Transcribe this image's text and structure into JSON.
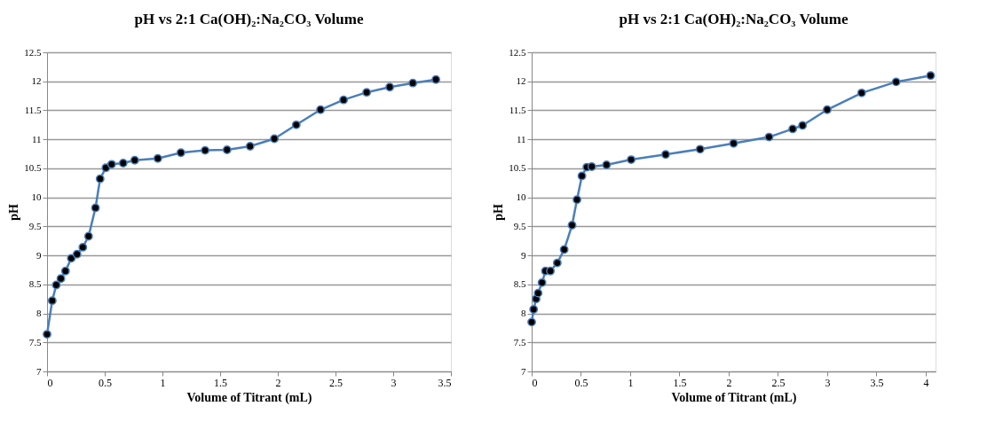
{
  "chart_data": [
    {
      "type": "line",
      "title": "pH vs 2:1 Ca(OH)₂:Na₂CO₃ Volume",
      "xlabel": "Volume of Titrant (mL)",
      "ylabel": "pH",
      "marker": "circle",
      "line_style": "solid",
      "grid": "y",
      "xlim": [
        0,
        3.5
      ],
      "xticks": [
        0,
        0.5,
        1,
        1.5,
        2,
        2.5,
        3,
        3.5
      ],
      "ylim": [
        7,
        12.5
      ],
      "yticks": [
        7,
        7.5,
        8,
        8.5,
        9,
        9.5,
        10,
        10.5,
        11,
        11.5,
        12,
        12.5
      ],
      "x": [
        0,
        0.045,
        0.08,
        0.12,
        0.16,
        0.21,
        0.26,
        0.31,
        0.36,
        0.42,
        0.46,
        0.51,
        0.56,
        0.66,
        0.76,
        0.96,
        1.16,
        1.37,
        1.56,
        1.76,
        1.97,
        2.16,
        2.37,
        2.57,
        2.77,
        2.97,
        3.17,
        3.37
      ],
      "series": [
        {
          "color": "#4a7ebb",
          "values": [
            7.64,
            8.22,
            8.49,
            8.6,
            8.73,
            8.95,
            9.02,
            9.14,
            9.33,
            9.82,
            10.32,
            10.51,
            10.57,
            10.59,
            10.64,
            10.67,
            10.77,
            10.81,
            10.82,
            10.88,
            11.01,
            11.25,
            11.51,
            11.68,
            11.81,
            11.9,
            11.97,
            12.03
          ]
        }
      ]
    },
    {
      "type": "line",
      "title": "pH vs 2:1 Ca(OH)₂:Na₂CO₃ Volume",
      "xlabel": "Volume of Titrant (mL)",
      "ylabel": "pH",
      "marker": "circle",
      "line_style": "solid",
      "grid": "y",
      "xlim": [
        0,
        4.1
      ],
      "xticks": [
        0,
        0.5,
        1,
        1.5,
        2,
        2.5,
        3,
        3.5,
        4
      ],
      "ylim": [
        7,
        12.5
      ],
      "yticks": [
        7,
        7.5,
        8,
        8.5,
        9,
        9.5,
        10,
        10.5,
        11,
        11.5,
        12,
        12.5
      ],
      "x": [
        0,
        0.02,
        0.045,
        0.065,
        0.105,
        0.14,
        0.19,
        0.26,
        0.33,
        0.41,
        0.46,
        0.51,
        0.56,
        0.61,
        0.76,
        1.01,
        1.36,
        1.71,
        2.05,
        2.41,
        2.65,
        2.75,
        3.0,
        3.35,
        3.7,
        4.05
      ],
      "series": [
        {
          "color": "#4a7ebb",
          "values": [
            7.85,
            8.07,
            8.25,
            8.35,
            8.53,
            8.73,
            8.73,
            8.87,
            9.1,
            9.52,
            9.96,
            10.37,
            10.52,
            10.53,
            10.56,
            10.65,
            10.74,
            10.83,
            10.93,
            11.04,
            11.18,
            11.24,
            11.51,
            11.8,
            11.99,
            12.1
          ]
        }
      ]
    }
  ]
}
